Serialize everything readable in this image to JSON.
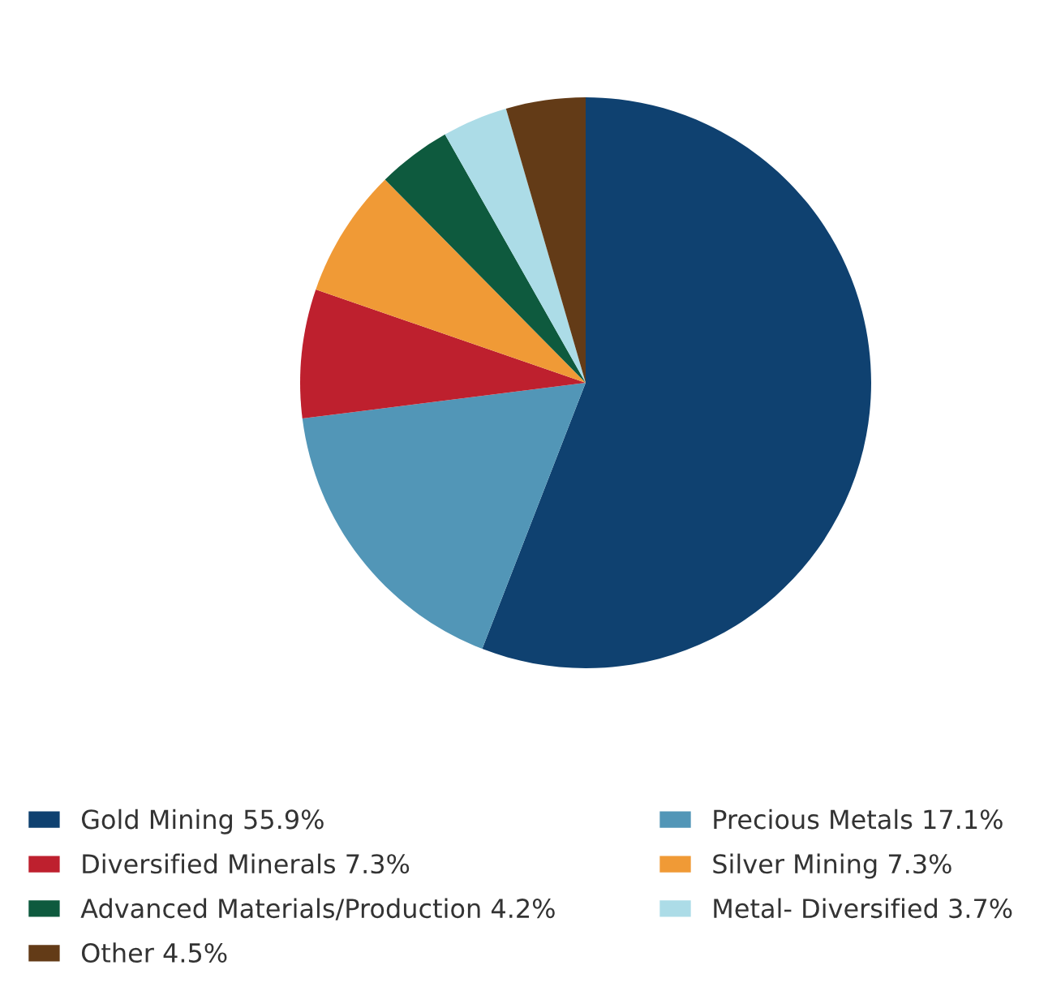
{
  "chart_data": {
    "type": "pie",
    "categories": [
      "Gold Mining",
      "Precious Metals",
      "Diversified Minerals",
      "Silver Mining",
      "Advanced Materials/Production",
      "Metal- Diversified",
      "Other"
    ],
    "values": [
      55.9,
      17.1,
      7.3,
      7.3,
      4.2,
      3.7,
      4.5
    ],
    "value_labels": [
      "55.9%",
      "17.1%",
      "7.3%",
      "7.3%",
      "4.2%",
      "3.7%",
      "4.5%"
    ],
    "colors": [
      "#0f4170",
      "#5296b7",
      "#be202e",
      "#f09a36",
      "#0e5a3e",
      "#acdce7",
      "#633b17"
    ],
    "legend": "bottom"
  }
}
